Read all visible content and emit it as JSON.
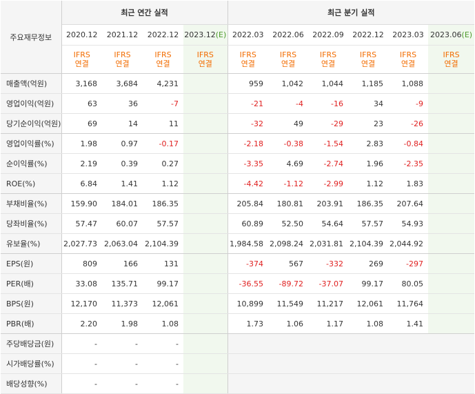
{
  "headers": {
    "corner_label": "주요재무정보",
    "annual_group": "최근 연간 실적",
    "quarter_group": "최근 분기 실적",
    "ifrs_line1": "IFRS",
    "ifrs_line2": "연결",
    "annual_periods": [
      "2020.12",
      "2021.12",
      "2022.12",
      "2023.12"
    ],
    "annual_est_suffix": "(E)",
    "quarter_periods": [
      "2022.03",
      "2022.06",
      "2022.09",
      "2022.12",
      "2023.03",
      "2023.06"
    ],
    "quarter_est_suffix": "(E)"
  },
  "colors": {
    "negative": "#e02020",
    "ifrs": "#f26c00",
    "estimate_bg": "#f1f8ee",
    "header_bg": "#f5f5f5"
  },
  "rows": [
    {
      "label": "매출액(억원)",
      "annual": [
        "3,168",
        "3,684",
        "4,231",
        ""
      ],
      "quarter": [
        "959",
        "1,042",
        "1,044",
        "1,185",
        "1,088",
        ""
      ]
    },
    {
      "label": "영업이익(억원)",
      "annual": [
        "63",
        "36",
        "-7",
        ""
      ],
      "quarter": [
        "-21",
        "-4",
        "-16",
        "34",
        "-9",
        ""
      ]
    },
    {
      "label": "당기순이익(억원)",
      "annual": [
        "69",
        "14",
        "11",
        ""
      ],
      "quarter": [
        "-32",
        "49",
        "-29",
        "23",
        "-26",
        ""
      ]
    },
    {
      "label": "영업이익률(%)",
      "annual": [
        "1.98",
        "0.97",
        "-0.17",
        ""
      ],
      "quarter": [
        "-2.18",
        "-0.38",
        "-1.54",
        "2.83",
        "-0.84",
        ""
      ]
    },
    {
      "label": "순이익률(%)",
      "annual": [
        "2.19",
        "0.39",
        "0.27",
        ""
      ],
      "quarter": [
        "-3.35",
        "4.69",
        "-2.74",
        "1.96",
        "-2.35",
        ""
      ]
    },
    {
      "label": "ROE(%)",
      "annual": [
        "6.84",
        "1.41",
        "1.12",
        ""
      ],
      "quarter": [
        "-4.42",
        "-1.12",
        "-2.99",
        "1.12",
        "1.83",
        ""
      ]
    },
    {
      "label": "부채비율(%)",
      "annual": [
        "159.90",
        "184.01",
        "186.35",
        ""
      ],
      "quarter": [
        "205.84",
        "180.81",
        "203.91",
        "186.35",
        "207.64",
        ""
      ]
    },
    {
      "label": "당좌비율(%)",
      "annual": [
        "57.47",
        "60.07",
        "57.57",
        ""
      ],
      "quarter": [
        "60.89",
        "52.50",
        "54.64",
        "57.57",
        "54.93",
        ""
      ]
    },
    {
      "label": "유보율(%)",
      "annual": [
        "2,027.73",
        "2,063.04",
        "2,104.39",
        ""
      ],
      "quarter": [
        "1,984.58",
        "2,098.24",
        "2,031.81",
        "2,104.39",
        "2,044.92",
        ""
      ]
    },
    {
      "label": "EPS(원)",
      "annual": [
        "809",
        "166",
        "131",
        ""
      ],
      "quarter": [
        "-374",
        "567",
        "-332",
        "269",
        "-297",
        ""
      ]
    },
    {
      "label": "PER(배)",
      "annual": [
        "33.08",
        "135.71",
        "99.17",
        ""
      ],
      "quarter": [
        "-36.55",
        "-89.72",
        "-37.07",
        "99.17",
        "80.05",
        ""
      ]
    },
    {
      "label": "BPS(원)",
      "annual": [
        "12,170",
        "11,373",
        "12,061",
        ""
      ],
      "quarter": [
        "10,899",
        "11,549",
        "11,217",
        "12,061",
        "11,764",
        ""
      ]
    },
    {
      "label": "PBR(배)",
      "annual": [
        "2.20",
        "1.98",
        "1.08",
        ""
      ],
      "quarter": [
        "1.73",
        "1.06",
        "1.17",
        "1.08",
        "1.41",
        ""
      ]
    },
    {
      "label": "주당배당금(원)",
      "annual": [
        "-",
        "-",
        "-",
        ""
      ],
      "quarter": null
    },
    {
      "label": "시가배당률(%)",
      "annual": [
        "-",
        "-",
        "-",
        ""
      ],
      "quarter": null
    },
    {
      "label": "배당성향(%)",
      "annual": [
        "-",
        "-",
        "-",
        ""
      ],
      "quarter": null
    }
  ]
}
